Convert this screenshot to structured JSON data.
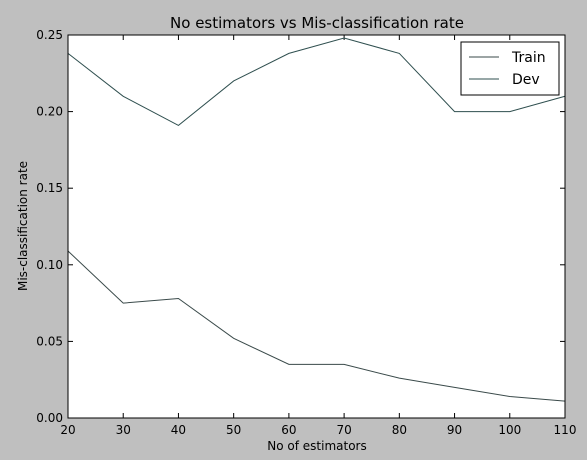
{
  "chart_data": {
    "type": "line",
    "title": "No estimators vs Mis-classification rate",
    "xlabel": "No of estimators",
    "ylabel": "Mis-classification rate",
    "xlim": [
      20,
      110
    ],
    "ylim": [
      0.0,
      0.25
    ],
    "x_ticks": [
      "20",
      "30",
      "40",
      "50",
      "60",
      "70",
      "80",
      "90",
      "100",
      "110"
    ],
    "y_ticks": [
      "0.00",
      "0.05",
      "0.10",
      "0.15",
      "0.20",
      "0.25"
    ],
    "grid": false,
    "legend_position": "top-right",
    "x": [
      20,
      30,
      40,
      50,
      60,
      70,
      80,
      90,
      100,
      110
    ],
    "series": [
      {
        "name": "Train",
        "color": "#3a4a4a",
        "values": [
          0.109,
          0.075,
          0.078,
          0.052,
          0.035,
          0.035,
          0.026,
          0.02,
          0.014,
          0.011
        ]
      },
      {
        "name": "Dev",
        "color": "#2f4f4f",
        "values": [
          0.238,
          0.21,
          0.191,
          0.22,
          0.238,
          0.248,
          0.238,
          0.2,
          0.2,
          0.21
        ]
      }
    ]
  }
}
